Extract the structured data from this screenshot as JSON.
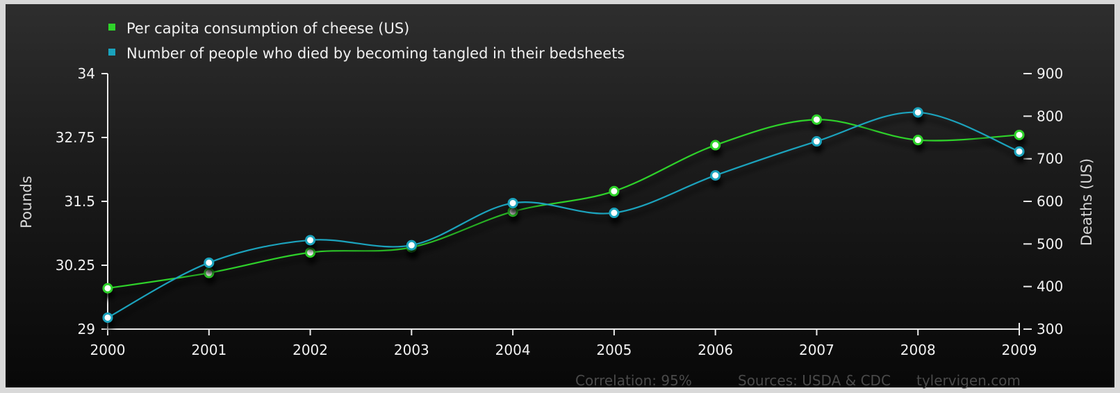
{
  "chart_data": {
    "type": "line",
    "x": [
      "2000",
      "2001",
      "2002",
      "2003",
      "2004",
      "2005",
      "2006",
      "2007",
      "2008",
      "2009"
    ],
    "series": [
      {
        "name": "Per capita consumption of cheese (US)",
        "axis": "left",
        "color": "#2fd22a",
        "values": [
          29.8,
          30.1,
          30.5,
          30.6,
          31.3,
          31.7,
          32.6,
          33.1,
          32.7,
          32.8
        ]
      },
      {
        "name": "Number of people who died by becoming tangled in their bedsheets",
        "axis": "right",
        "color": "#1aa3bd",
        "values": [
          327,
          456,
          509,
          497,
          596,
          573,
          661,
          741,
          809,
          717
        ]
      }
    ],
    "y_left": {
      "label": "Pounds",
      "lim": [
        29,
        34
      ],
      "ticks": [
        "29",
        "30.25",
        "31.5",
        "32.75",
        "34"
      ]
    },
    "y_right": {
      "label": "Deaths (US)",
      "lim": [
        300,
        900
      ],
      "ticks": [
        "300",
        "400",
        "500",
        "600",
        "700",
        "800",
        "900"
      ]
    },
    "grid": false,
    "legend_position": "top-left"
  },
  "footer": {
    "correlation": "Correlation: 95%",
    "sources": "Sources: USDA & CDC",
    "site": "tylervigen.com"
  }
}
